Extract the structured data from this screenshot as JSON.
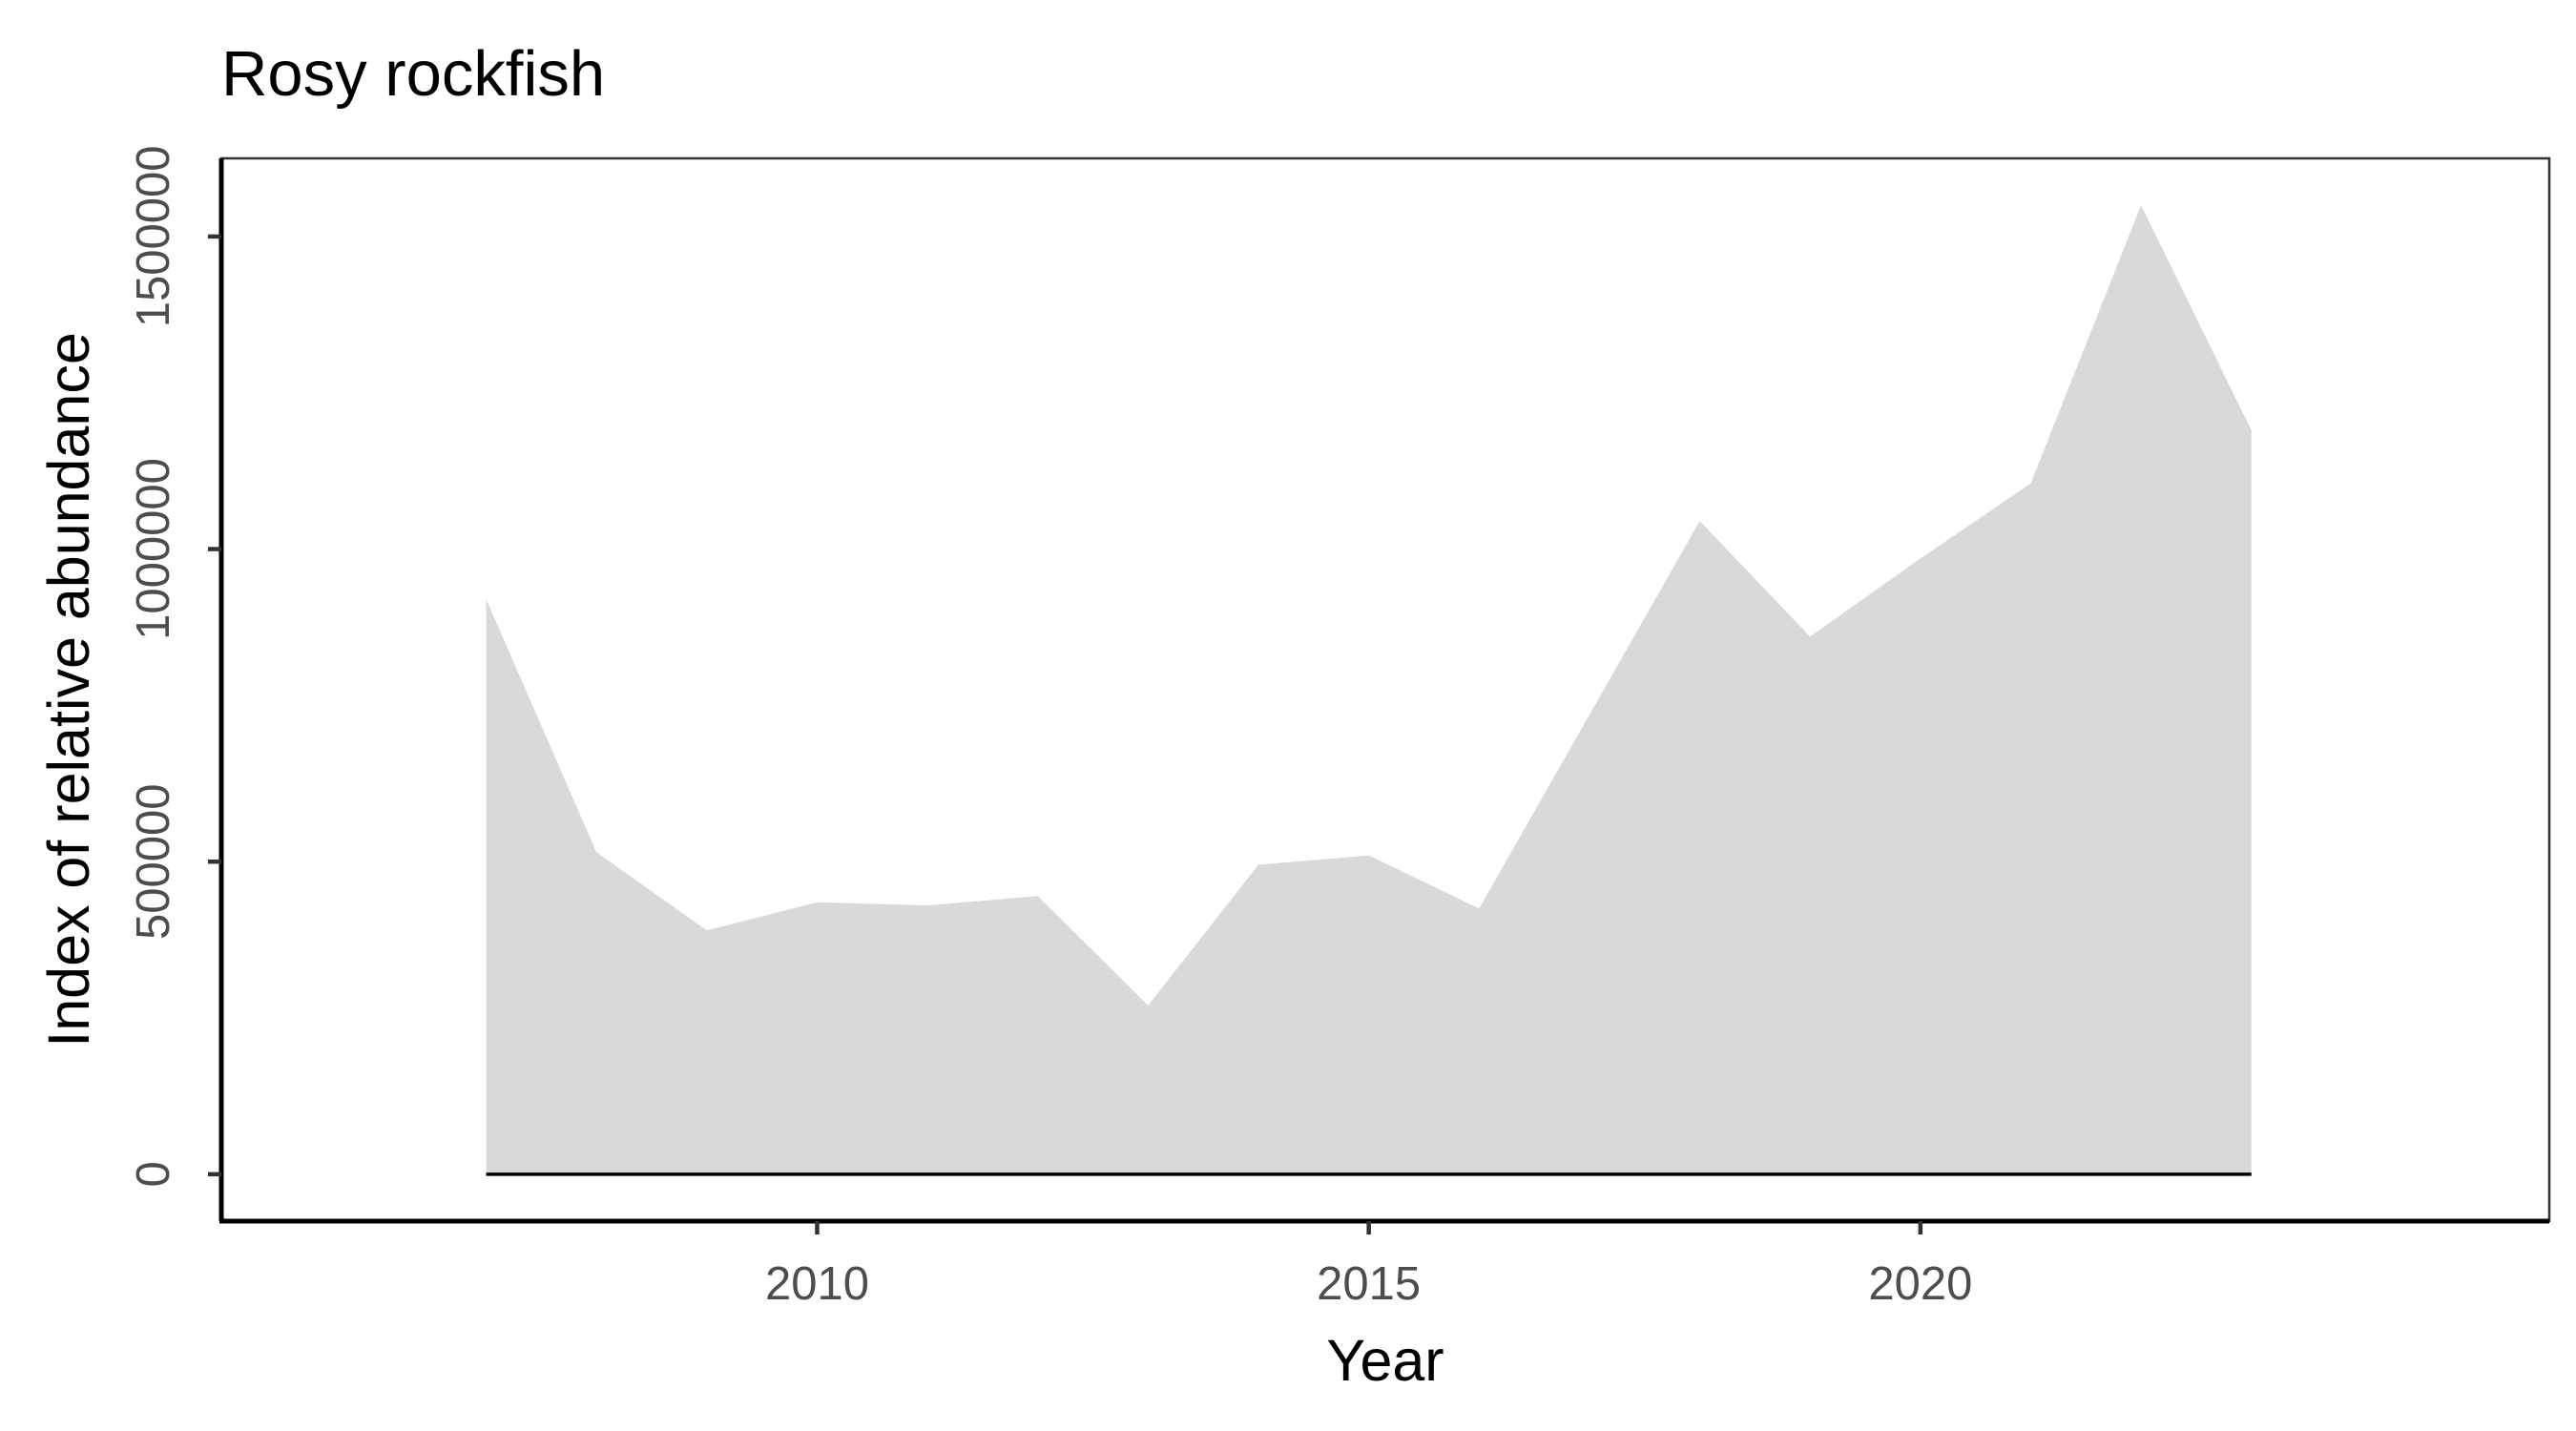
{
  "chart_data": {
    "type": "area",
    "title": "Rosy rockfish",
    "xlabel": "Year",
    "ylabel": "Index of relative abundance",
    "x": [
      2007,
      2008,
      2009,
      2010,
      2011,
      2012,
      2013,
      2014,
      2015,
      2016,
      2017,
      2018,
      2019,
      2020,
      2021,
      2022,
      2023
    ],
    "series": [
      {
        "values": [
          920000,
          515000,
          390000,
          435000,
          430000,
          445000,
          270000,
          495000,
          510000,
          425000,
          735000,
          1045000,
          860000,
          985000,
          1105000,
          1550000,
          1190000
        ]
      }
    ],
    "baseline": 0,
    "xlim": [
      2004.6,
      2025.7
    ],
    "ylim": [
      -75000,
      1625000
    ],
    "xticks": [
      2010,
      2015,
      2020
    ],
    "yticks": [
      0,
      500000,
      1000000,
      1500000
    ],
    "xtick_labels": [
      "2010",
      "2015",
      "2020"
    ],
    "ytick_labels": [
      "0",
      "500000",
      "1000000",
      "1500000"
    ],
    "fill_color": "#d9d9d9",
    "baseline_color": "#000000",
    "grid": false,
    "legend": "none"
  }
}
